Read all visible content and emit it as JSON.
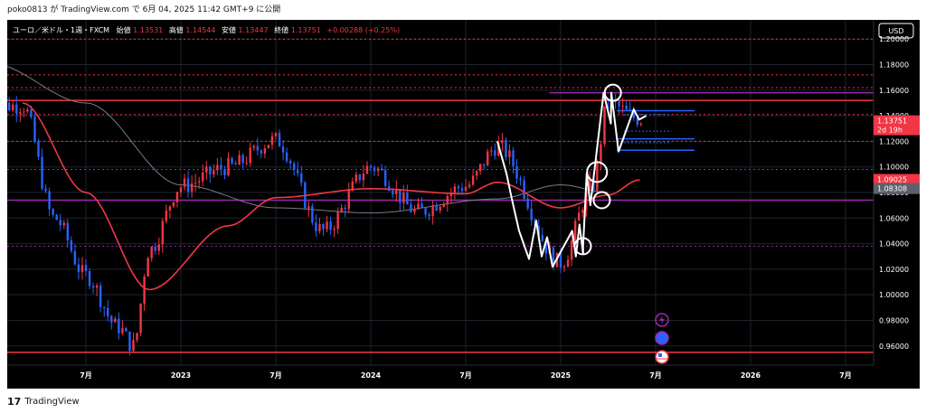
{
  "header": {
    "text": "poko0813 が TradingView.com で 6月 04, 2025 11:42 GMT+9 に公開"
  },
  "legend": {
    "symbol": "ユーロ／米ドル・1週・FXCM",
    "open_label": "始値",
    "open": "1.13531",
    "high_label": "高値",
    "high": "1.14544",
    "low_label": "安値",
    "low": "1.13447",
    "close_label": "終値",
    "close": "1.13751",
    "change": "+0.00288 (+0.25%)"
  },
  "axis": {
    "currency": "USD",
    "price_ticks": [
      "1.20000",
      "1.18000",
      "1.16000",
      "1.14000",
      "1.12000",
      "1.10000",
      "1.08000",
      "1.06000",
      "1.04000",
      "1.02000",
      "1.00000",
      "0.98000",
      "0.96000"
    ],
    "time_ticks": [
      "7月",
      "2023",
      "7月",
      "2024",
      "7月",
      "2025",
      "7月",
      "2026",
      "7月"
    ]
  },
  "badges": {
    "last_price": "1.13751",
    "countdown": "2d 19h",
    "level_a": "1.09025",
    "level_b": "1.08308"
  },
  "footer": {
    "brand": "TradingView"
  },
  "colors": {
    "background": "#000000",
    "up_candle": "#f23645",
    "down_candle": "#2962ff",
    "ma_fast": "#f23645",
    "ma_slow": "#787b86",
    "zigzag": "#ffffff",
    "red_level": "#f23645",
    "purple_level": "#9c27b0",
    "blue_level": "#2962ff",
    "badge_red": "#f23645",
    "badge_gray": "#5d606b",
    "icon_purple": "#9c27b0",
    "icon_blue": "#2962ff",
    "icon_red": "#f23645"
  },
  "chart_data": {
    "type": "candlestick",
    "instrument": "ユーロ／米ドル・1週・FXCM",
    "ylim": [
      0.945,
      1.215
    ],
    "x_ticks": [
      "7月",
      "2023",
      "7月",
      "2024",
      "7月",
      "2025",
      "7月",
      "2026",
      "7月"
    ],
    "price_anchors": [
      {
        "date": "2022-03",
        "close": 1.148
      },
      {
        "date": "2022-05",
        "close": 1.06
      },
      {
        "date": "2022-07",
        "close": 1.015
      },
      {
        "date": "2022-09",
        "close": 0.975
      },
      {
        "date": "2022-10",
        "close": 0.96
      },
      {
        "date": "2022-11",
        "close": 1.035
      },
      {
        "date": "2023-01",
        "close": 1.085
      },
      {
        "date": "2023-04",
        "close": 1.1
      },
      {
        "date": "2023-07",
        "close": 1.121
      },
      {
        "date": "2023-10",
        "close": 1.05
      },
      {
        "date": "2024-01",
        "close": 1.1
      },
      {
        "date": "2024-04",
        "close": 1.065
      },
      {
        "date": "2024-07",
        "close": 1.085
      },
      {
        "date": "2024-09",
        "close": 1.116
      },
      {
        "date": "2025-01",
        "close": 1.025
      },
      {
        "date": "2025-03",
        "close": 1.085
      },
      {
        "date": "2025-04",
        "close": 1.15
      },
      {
        "date": "2025-06",
        "close": 1.1375
      }
    ],
    "horizontal_levels": [
      {
        "price": 1.2,
        "color": "#f23645",
        "style": "dotted"
      },
      {
        "price": 1.172,
        "color": "#f23645",
        "style": "dotted"
      },
      {
        "price": 1.162,
        "color": "#f23645",
        "style": "dotted"
      },
      {
        "price": 1.152,
        "color": "#f23645",
        "style": "solid"
      },
      {
        "price": 1.141,
        "color": "#f23645",
        "style": "dotted"
      },
      {
        "price": 1.12,
        "color": "#f23645",
        "style": "dotted"
      },
      {
        "price": 0.955,
        "color": "#f23645",
        "style": "solid"
      },
      {
        "price": 1.158,
        "color": "#9c27b0",
        "style": "solid"
      },
      {
        "price": 1.098,
        "color": "#9c27b0",
        "style": "dotted"
      },
      {
        "price": 1.074,
        "color": "#9c27b0",
        "style": "solid"
      },
      {
        "price": 1.038,
        "color": "#9c27b0",
        "style": "dotted"
      },
      {
        "price": 1.144,
        "color": "#2962ff",
        "style": "solid"
      },
      {
        "price": 1.122,
        "color": "#2962ff",
        "style": "solid"
      },
      {
        "price": 1.113,
        "color": "#2962ff",
        "style": "solid"
      }
    ],
    "zigzag": [
      {
        "date": "2024-09",
        "price": 1.12
      },
      {
        "date": "2024-11",
        "price": 1.028
      },
      {
        "date": "2025-01",
        "price": 1.02
      },
      {
        "date": "2025-02",
        "price": 1.055
      },
      {
        "date": "2025-03",
        "price": 1.095
      },
      {
        "date": "2025-04",
        "price": 1.158
      },
      {
        "date": "2025-05",
        "price": 1.11
      },
      {
        "date": "2025-06",
        "price": 1.14
      }
    ],
    "circles": [
      {
        "date": "2025-02",
        "price": 1.038
      },
      {
        "date": "2025-03",
        "price": 1.096
      },
      {
        "date": "2025-03",
        "price": 1.074
      },
      {
        "date": "2025-04",
        "price": 1.158
      }
    ],
    "ma_fast_anchors": [
      {
        "date": "2022-03",
        "value": 1.15
      },
      {
        "date": "2022-07",
        "value": 1.08
      },
      {
        "date": "2022-11",
        "value": 1.004
      },
      {
        "date": "2023-04",
        "value": 1.054
      },
      {
        "date": "2023-07",
        "value": 1.076
      },
      {
        "date": "2024-01",
        "value": 1.083
      },
      {
        "date": "2024-07",
        "value": 1.079
      },
      {
        "date": "2024-09",
        "value": 1.088
      },
      {
        "date": "2025-01",
        "value": 1.068
      },
      {
        "date": "2025-04",
        "value": 1.078
      },
      {
        "date": "2025-06",
        "value": 1.09
      }
    ],
    "ma_slow_anchors": [
      {
        "date": "2022-01",
        "value": 1.181
      },
      {
        "date": "2022-07",
        "value": 1.15
      },
      {
        "date": "2023-01",
        "value": 1.086
      },
      {
        "date": "2023-07",
        "value": 1.068
      },
      {
        "date": "2024-01",
        "value": 1.064
      },
      {
        "date": "2024-09",
        "value": 1.075
      },
      {
        "date": "2025-01",
        "value": 1.086
      },
      {
        "date": "2025-04",
        "value": 1.08
      }
    ],
    "price_badges": [
      {
        "label": "1.13751",
        "extra": "2d 19h",
        "color": "#f23645"
      },
      {
        "label": "1.09025",
        "color": "#f23645"
      },
      {
        "label": "1.08308",
        "color": "#5d606b"
      }
    ]
  }
}
